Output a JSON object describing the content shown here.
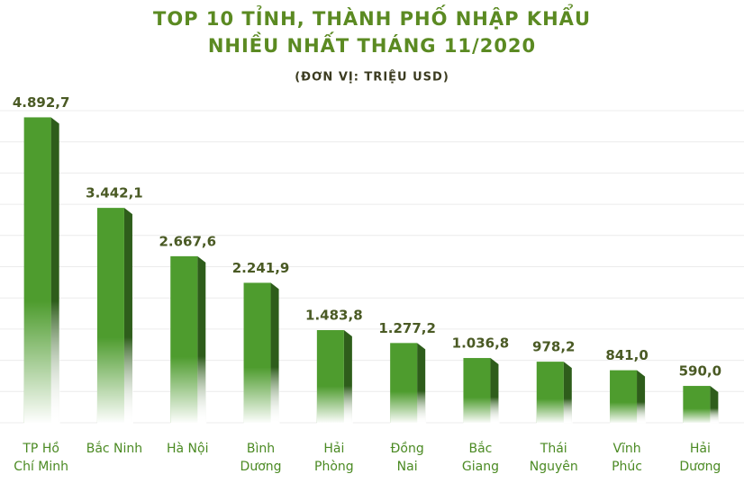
{
  "chart_data": {
    "type": "bar",
    "title": "TOP 10 TỈNH, THÀNH PHỐ NHẬP KHẨU\nNHIỀU NHẤT THÁNG 11/2020",
    "subtitle": "(ĐƠN VỊ: TRIỆU USD)",
    "categories": [
      "TP Hồ\nChí Minh",
      "Bắc Ninh",
      "Hà Nội",
      "Bình\nDương",
      "Hải\nPhòng",
      "Đồng\nNai",
      "Bắc\nGiang",
      "Thái\nNguyên",
      "Vĩnh\nPhúc",
      "Hải\nDương"
    ],
    "values": [
      4892.7,
      3442.1,
      2667.6,
      2241.9,
      1483.8,
      1277.2,
      1036.8,
      978.2,
      841.0,
      590.0
    ],
    "value_labels": [
      "4.892,7",
      "3.442,1",
      "2.667,6",
      "2.241,9",
      "1.483,8",
      "1.277,2",
      "1.036,8",
      "978,2",
      "841,0",
      "590,0"
    ],
    "color": "#4e9c2e",
    "ylim": [
      0,
      5000
    ],
    "yticks": [
      0,
      500,
      1000,
      1500,
      2000,
      2500,
      3000,
      3500,
      4000,
      4500,
      5000
    ],
    "grid": true
  }
}
